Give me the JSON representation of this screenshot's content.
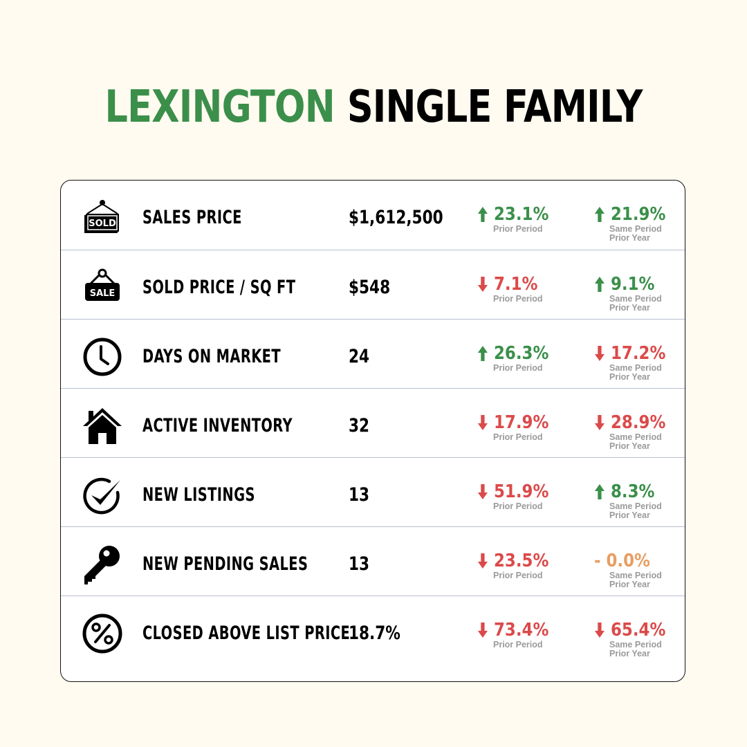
{
  "title": {
    "city": "LEXINGTON",
    "type": "SINGLE FAMILY"
  },
  "colors": {
    "up": "#3b8f4a",
    "down": "#db4a4a",
    "flat": "#e79e62",
    "background": "#fffbf0"
  },
  "labels": {
    "prior_period": "Prior Period",
    "same_period_l1": "Same Period",
    "same_period_l2": "Prior Year"
  },
  "rows": [
    {
      "icon": "sold-sign-icon",
      "label": "SALES PRICE",
      "value": "$1,612,500",
      "prior": {
        "dir": "up",
        "text": "23.1%"
      },
      "yoy": {
        "dir": "up",
        "text": "21.9%"
      }
    },
    {
      "icon": "sale-sign-icon",
      "label": "SOLD PRICE / SQ FT",
      "value": "$548",
      "prior": {
        "dir": "down",
        "text": "7.1%"
      },
      "yoy": {
        "dir": "up",
        "text": "9.1%"
      }
    },
    {
      "icon": "clock-icon",
      "label": "DAYS ON MARKET",
      "value": "24",
      "prior": {
        "dir": "up",
        "text": "26.3%"
      },
      "yoy": {
        "dir": "down",
        "text": "17.2%"
      }
    },
    {
      "icon": "house-icon",
      "label": "ACTIVE INVENTORY",
      "value": "32",
      "prior": {
        "dir": "down",
        "text": "17.9%"
      },
      "yoy": {
        "dir": "down",
        "text": "28.9%"
      }
    },
    {
      "icon": "checkmark-icon",
      "label": "NEW LISTINGS",
      "value": "13",
      "prior": {
        "dir": "down",
        "text": "51.9%"
      },
      "yoy": {
        "dir": "up",
        "text": "8.3%"
      }
    },
    {
      "icon": "key-icon",
      "label": "NEW PENDING SALES",
      "value": "13",
      "prior": {
        "dir": "down",
        "text": "23.5%"
      },
      "yoy": {
        "dir": "flat",
        "text": "- 0.0%"
      }
    },
    {
      "icon": "percent-icon",
      "label": "CLOSED ABOVE LIST PRICE",
      "value": "18.7%",
      "prior": {
        "dir": "down",
        "text": "73.4%"
      },
      "yoy": {
        "dir": "down",
        "text": "65.4%"
      }
    }
  ]
}
